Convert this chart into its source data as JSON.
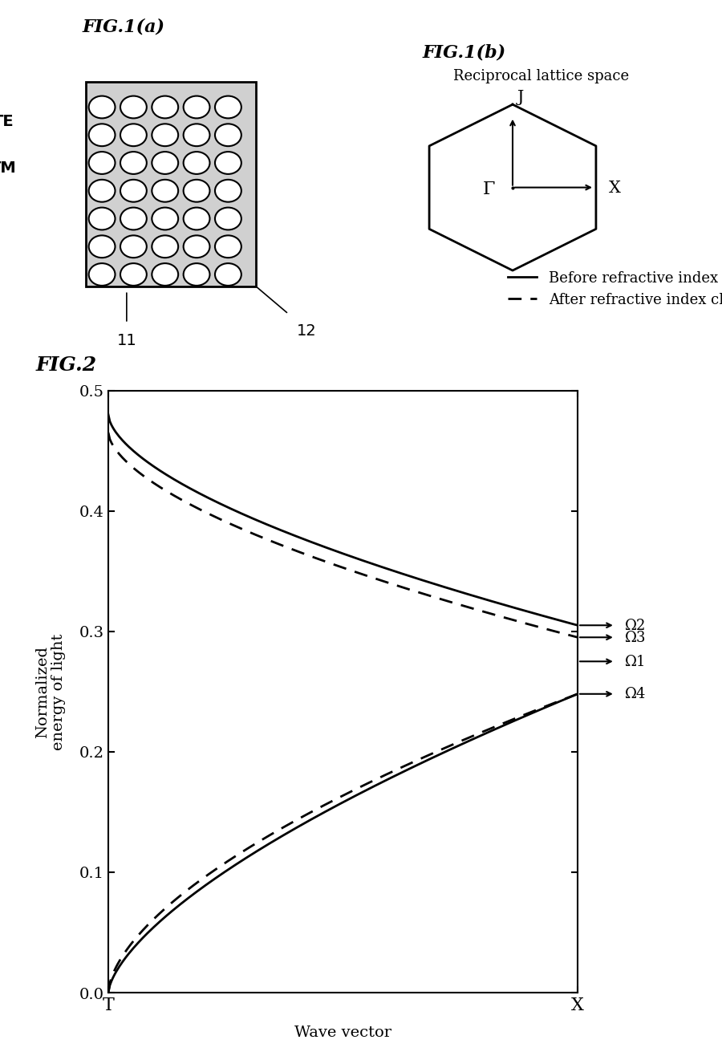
{
  "fig_title_a": "FIG.1(a)",
  "fig_title_b": "FIG.1(b)",
  "fig_title_2": "FIG.2",
  "reciprocal_label": "Reciprocal lattice space",
  "hexagon_labels": {
    "J": "J",
    "X": "X",
    "Gamma": "Γ"
  },
  "ylabel": "Normalized\nenergy of light",
  "xlabel": "Wave vector",
  "legend_before": "Before refractive index change",
  "legend_after": "After refractive index change",
  "label_11": "11",
  "label_12": "12",
  "omega_labels": [
    "Ω2",
    "Ω3",
    "Ω1",
    "Ω4"
  ],
  "omega_values": [
    0.305,
    0.295,
    0.275,
    0.248
  ],
  "ylim": [
    0.0,
    0.5
  ],
  "yticks": [
    0.0,
    0.1,
    0.2,
    0.3,
    0.4,
    0.5
  ],
  "bg_color": "#ffffff",
  "line_color": "#000000"
}
